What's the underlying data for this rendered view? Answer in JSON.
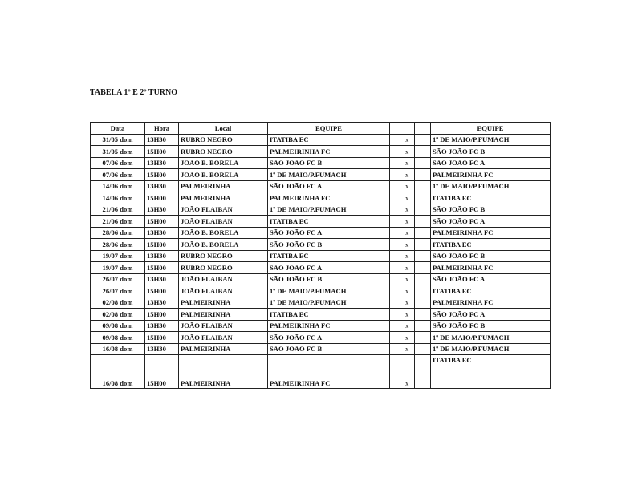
{
  "title": "TABELA 1º E 2º TURNO",
  "table": {
    "header": [
      "Data",
      "Hora",
      "Local",
      "EQUIPE",
      "EQUIPE"
    ],
    "rows": [
      [
        "31/05 dom",
        "13H30",
        "RUBRO NEGRO",
        "ITATIBA EC",
        "x",
        "1º DE MAIO/P.FUMACH"
      ],
      [
        "31/05 dom",
        "15H00",
        "RUBRO NEGRO",
        "PALMEIRINHA FC",
        "x",
        "SÃO JOÃO FC B"
      ],
      [
        "07/06 dom",
        "13H30",
        "JOÃO B. BORELA",
        "SÃO JOÃO FC B",
        "x",
        "SÃO JOÃO FC A"
      ],
      [
        "07/06 dom",
        "15H00",
        "JOÃO B. BORELA",
        "1º DE MAIO/P.FUMACH",
        "x",
        "PALMEIRINHA FC"
      ],
      [
        "14/06 dom",
        "13H30",
        "PALMEIRINHA",
        "SÃO JOÃO FC A",
        "x",
        "1º DE MAIO/P.FUMACH"
      ],
      [
        "14/06 dom",
        "15H00",
        "PALMEIRINHA",
        "PALMEIRINHA FC",
        "x",
        "ITATIBA EC"
      ],
      [
        "21/06 dom",
        "13H30",
        "JOÃO FLAIBAN",
        "1º DE MAIO/P.FUMACH",
        "x",
        "SÃO JOÃO FC B"
      ],
      [
        "21/06 dom",
        "15H00",
        "JOÃO FLAIBAN",
        "ITATIBA EC",
        "x",
        "SÃO JOÃO FC A"
      ],
      [
        "28/06 dom",
        "13H30",
        "JOÃO B. BORELA",
        "SÃO JOÃO FC A",
        "x",
        "PALMEIRINHA FC"
      ],
      [
        "28/06 dom",
        "15H00",
        "JOÃO B. BORELA",
        "SÃO JOÃO FC B",
        "x",
        "ITATIBA EC"
      ],
      [
        "19/07 dom",
        "13H30",
        "RUBRO NEGRO",
        "ITATIBA EC",
        "x",
        "SÃO JOÃO FC B"
      ],
      [
        "19/07 dom",
        "15H00",
        "RUBRO NEGRO",
        "SÃO JOÃO FC A",
        "x",
        "PALMEIRINHA FC"
      ],
      [
        "26/07 dom",
        "13H30",
        "JOÃO FLAIBAN",
        "SÃO JOÃO FC B",
        "x",
        "SÃO JOÃO FC A"
      ],
      [
        "26/07 dom",
        "15H00",
        "JOÃO FLAIBAN",
        "1º DE MAIO/P.FUMACH",
        "x",
        "ITATIBA EC"
      ],
      [
        "02/08 dom",
        "13H30",
        "PALMEIRINHA",
        "1º DE MAIO/P.FUMACH",
        "x",
        "PALMEIRINHA FC"
      ],
      [
        "02/08 dom",
        "15H00",
        "PALMEIRINHA",
        "ITATIBA EC",
        "x",
        "SÃO JOÃO FC A"
      ],
      [
        "09/08 dom",
        "13H30",
        "JOÃO FLAIBAN",
        "PALMEIRINHA FC",
        "x",
        "SÃO JOÃO FC B"
      ],
      [
        "09/08 dom",
        "15H00",
        "JOÃO FLAIBAN",
        "SÃO JOÃO FC A",
        "x",
        "1º DE MAIO/P.FUMACH"
      ],
      [
        "16/08 dom",
        "13H30",
        "PALMEIRINHA",
        "SÃO JOÃO FC B",
        "x",
        "1º DE MAIO/P.FUMACH"
      ],
      [
        "16/08 dom",
        "15H00",
        "PALMEIRINHA",
        "PALMEIRINHA FC",
        "x",
        "ITATIBA EC"
      ]
    ]
  }
}
